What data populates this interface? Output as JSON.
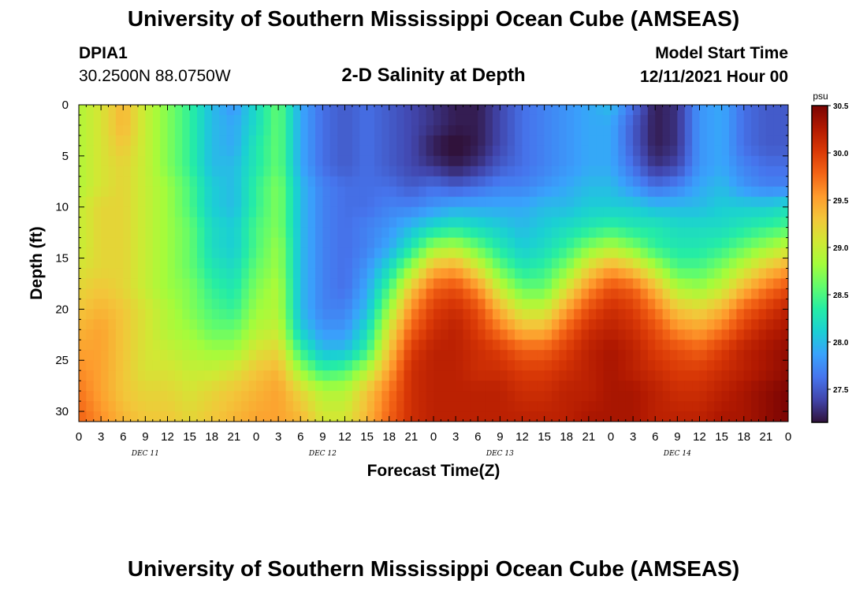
{
  "title": "University of Southern Mississippi Ocean Cube (AMSEAS)",
  "header": {
    "station": "DPIA1",
    "coords": "30.2500N  88.0750W",
    "subtitle": "2-D Salinity at Depth",
    "start_label": "Model Start Time",
    "start_value": "12/11/2021 Hour 00"
  },
  "chart_data": {
    "type": "heatmap",
    "title": "2-D Salinity at Depth",
    "xlabel": "Forecast Time(Z)",
    "ylabel": "Depth (ft)",
    "x_range_hours": [
      0,
      96
    ],
    "x_tick_step_hours": 3,
    "x_tick_labels": [
      "0",
      "3",
      "6",
      "9",
      "12",
      "15",
      "18",
      "21",
      "0",
      "3",
      "6",
      "9",
      "12",
      "15",
      "18",
      "21",
      "0",
      "3",
      "6",
      "9",
      "12",
      "15",
      "18",
      "21",
      "0",
      "3",
      "6",
      "9",
      "12",
      "15",
      "18",
      "21",
      "0"
    ],
    "day_labels": [
      "DEC 11",
      "DEC 12",
      "DEC 13",
      "DEC 14"
    ],
    "ylim": [
      0,
      31
    ],
    "y_inverted": true,
    "y_ticks": [
      0,
      5,
      10,
      15,
      20,
      25,
      30
    ],
    "colorbar": {
      "unit": "psu",
      "range": [
        27.15,
        30.5
      ],
      "ticks": [
        27.5,
        28.0,
        28.5,
        29.0,
        29.5,
        30.0,
        30.5
      ],
      "tick_labels": [
        "27.5",
        "28.0",
        "28.5",
        "29.0",
        "29.5",
        "30.0",
        "30.5"
      ],
      "colors": [
        "#30123b",
        "#4145ab",
        "#4675ed",
        "#39a2fc",
        "#1bcfd4",
        "#24eca6",
        "#61fc6c",
        "#a4fc3b",
        "#d1e834",
        "#f3c63a",
        "#fe9b2d",
        "#f36315",
        "#d93806",
        "#b11901",
        "#7a0403"
      ]
    },
    "depths": [
      0,
      2,
      4,
      6,
      8,
      10,
      12,
      14,
      16,
      18,
      20,
      22,
      24,
      26,
      28,
      31
    ],
    "times": [
      0,
      3,
      6,
      9,
      12,
      15,
      18,
      21,
      24,
      27,
      30,
      33,
      36,
      39,
      42,
      45,
      48,
      51,
      54,
      57,
      60,
      63,
      66,
      69,
      72,
      75,
      78,
      81,
      84,
      87,
      90,
      93,
      96
    ],
    "values": [
      [
        28.9,
        29.1,
        29.4,
        29.0,
        28.7,
        28.4,
        28.0,
        27.8,
        28.2,
        28.6,
        27.9,
        27.6,
        27.5,
        27.6,
        27.5,
        27.4,
        27.3,
        27.2,
        27.2,
        27.4,
        27.6,
        27.7,
        27.8,
        27.9,
        28.0,
        27.6,
        27.2,
        27.3,
        27.8,
        27.9,
        27.6,
        27.5,
        27.5
      ],
      [
        28.9,
        29.1,
        29.4,
        29.0,
        28.7,
        28.4,
        28.0,
        27.9,
        28.2,
        28.6,
        27.9,
        27.6,
        27.5,
        27.6,
        27.5,
        27.4,
        27.3,
        27.2,
        27.2,
        27.4,
        27.6,
        27.7,
        27.8,
        27.9,
        27.9,
        27.5,
        27.2,
        27.3,
        27.8,
        27.9,
        27.6,
        27.5,
        27.5
      ],
      [
        28.9,
        29.1,
        29.3,
        29.0,
        28.7,
        28.4,
        28.0,
        27.9,
        28.3,
        28.6,
        27.9,
        27.6,
        27.5,
        27.6,
        27.5,
        27.4,
        27.2,
        27.1,
        27.2,
        27.4,
        27.6,
        27.7,
        27.8,
        27.9,
        27.9,
        27.5,
        27.2,
        27.3,
        27.8,
        27.9,
        27.6,
        27.5,
        27.5
      ],
      [
        28.9,
        29.1,
        29.2,
        29.0,
        28.7,
        28.4,
        28.0,
        28.0,
        28.3,
        28.6,
        27.9,
        27.6,
        27.5,
        27.6,
        27.5,
        27.4,
        27.3,
        27.2,
        27.3,
        27.5,
        27.6,
        27.7,
        27.8,
        27.9,
        27.9,
        27.6,
        27.3,
        27.4,
        27.8,
        27.9,
        27.7,
        27.6,
        27.6
      ],
      [
        28.9,
        29.1,
        29.2,
        29.0,
        28.8,
        28.5,
        28.1,
        28.0,
        28.4,
        28.7,
        28.0,
        27.7,
        27.6,
        27.6,
        27.6,
        27.5,
        27.6,
        27.5,
        27.6,
        27.7,
        27.7,
        27.8,
        27.9,
        28.0,
        28.0,
        27.8,
        27.6,
        27.7,
        27.9,
        28.0,
        27.8,
        27.7,
        27.7
      ],
      [
        29.0,
        29.2,
        29.2,
        29.0,
        28.8,
        28.5,
        28.1,
        28.0,
        28.4,
        28.7,
        28.0,
        27.7,
        27.6,
        27.6,
        27.7,
        27.7,
        27.8,
        27.9,
        27.9,
        27.9,
        27.9,
        28.0,
        28.0,
        28.1,
        28.1,
        28.1,
        28.0,
        28.0,
        28.0,
        28.1,
        28.1,
        28.1,
        28.2
      ],
      [
        29.0,
        29.2,
        29.2,
        29.0,
        28.8,
        28.6,
        28.2,
        28.1,
        28.5,
        28.7,
        28.0,
        27.7,
        27.6,
        27.7,
        27.8,
        28.0,
        28.2,
        28.3,
        28.2,
        28.1,
        28.0,
        28.1,
        28.2,
        28.3,
        28.4,
        28.3,
        28.3,
        28.2,
        28.2,
        28.2,
        28.3,
        28.4,
        28.5
      ],
      [
        29.0,
        29.2,
        29.2,
        29.0,
        28.8,
        28.6,
        28.2,
        28.1,
        28.5,
        28.8,
        28.0,
        27.7,
        27.6,
        27.7,
        27.9,
        28.3,
        28.8,
        28.9,
        28.6,
        28.3,
        28.1,
        28.2,
        28.4,
        28.7,
        28.9,
        28.7,
        28.4,
        28.3,
        28.3,
        28.4,
        28.6,
        28.8,
        29.0
      ],
      [
        29.1,
        29.2,
        29.2,
        29.0,
        28.8,
        28.6,
        28.3,
        28.2,
        28.6,
        28.8,
        28.0,
        27.7,
        27.6,
        27.8,
        28.2,
        28.8,
        29.4,
        29.5,
        29.1,
        28.6,
        28.3,
        28.4,
        28.7,
        29.2,
        29.5,
        29.3,
        28.9,
        28.5,
        28.5,
        28.7,
        29.0,
        29.3,
        29.5
      ],
      [
        29.2,
        29.3,
        29.2,
        29.0,
        28.8,
        28.7,
        28.4,
        28.3,
        28.7,
        28.9,
        28.0,
        27.7,
        27.6,
        27.9,
        28.5,
        29.3,
        29.8,
        29.9,
        29.6,
        29.0,
        28.6,
        28.6,
        29.1,
        29.6,
        29.9,
        29.8,
        29.4,
        28.9,
        28.8,
        29.0,
        29.4,
        29.7,
        29.9
      ],
      [
        29.3,
        29.4,
        29.3,
        29.1,
        28.9,
        28.7,
        28.5,
        28.4,
        28.8,
        28.9,
        28.0,
        27.7,
        27.7,
        28.0,
        28.8,
        29.6,
        30.0,
        30.1,
        29.9,
        29.4,
        29.0,
        29.0,
        29.5,
        29.9,
        30.1,
        30.0,
        29.7,
        29.3,
        29.2,
        29.4,
        29.8,
        30.0,
        30.2
      ],
      [
        29.4,
        29.5,
        29.3,
        29.1,
        28.9,
        28.8,
        28.6,
        28.6,
        28.9,
        29.0,
        28.1,
        27.8,
        27.8,
        28.2,
        29.1,
        29.8,
        30.1,
        30.2,
        30.0,
        29.7,
        29.4,
        29.4,
        29.8,
        30.1,
        30.2,
        30.1,
        29.9,
        29.6,
        29.5,
        29.7,
        30.0,
        30.2,
        30.3
      ],
      [
        29.5,
        29.5,
        29.3,
        29.1,
        29.0,
        28.9,
        28.8,
        28.8,
        29.1,
        29.2,
        28.4,
        28.0,
        28.0,
        28.4,
        29.3,
        30.0,
        30.2,
        30.2,
        30.1,
        30.0,
        29.8,
        29.8,
        30.0,
        30.2,
        30.3,
        30.2,
        30.0,
        29.9,
        29.8,
        30.0,
        30.2,
        30.3,
        30.4
      ],
      [
        29.6,
        29.5,
        29.3,
        29.1,
        29.1,
        29.0,
        29.0,
        29.1,
        29.3,
        29.4,
        28.8,
        28.4,
        28.5,
        28.9,
        29.5,
        30.1,
        30.2,
        30.2,
        30.1,
        30.1,
        30.0,
        30.0,
        30.1,
        30.2,
        30.3,
        30.2,
        30.1,
        30.0,
        30.0,
        30.1,
        30.2,
        30.3,
        30.4
      ],
      [
        29.7,
        29.5,
        29.3,
        29.2,
        29.2,
        29.1,
        29.2,
        29.3,
        29.4,
        29.5,
        29.2,
        28.9,
        28.9,
        29.3,
        29.7,
        30.1,
        30.2,
        30.2,
        30.2,
        30.2,
        30.1,
        30.1,
        30.2,
        30.2,
        30.3,
        30.3,
        30.2,
        30.1,
        30.1,
        30.2,
        30.3,
        30.4,
        30.5
      ],
      [
        29.8,
        29.6,
        29.4,
        29.3,
        29.3,
        29.2,
        29.3,
        29.4,
        29.5,
        29.5,
        29.4,
        29.1,
        29.1,
        29.4,
        29.8,
        30.1,
        30.2,
        30.2,
        30.2,
        30.2,
        30.2,
        30.2,
        30.2,
        30.3,
        30.3,
        30.3,
        30.2,
        30.2,
        30.2,
        30.3,
        30.3,
        30.4,
        30.5
      ]
    ]
  }
}
